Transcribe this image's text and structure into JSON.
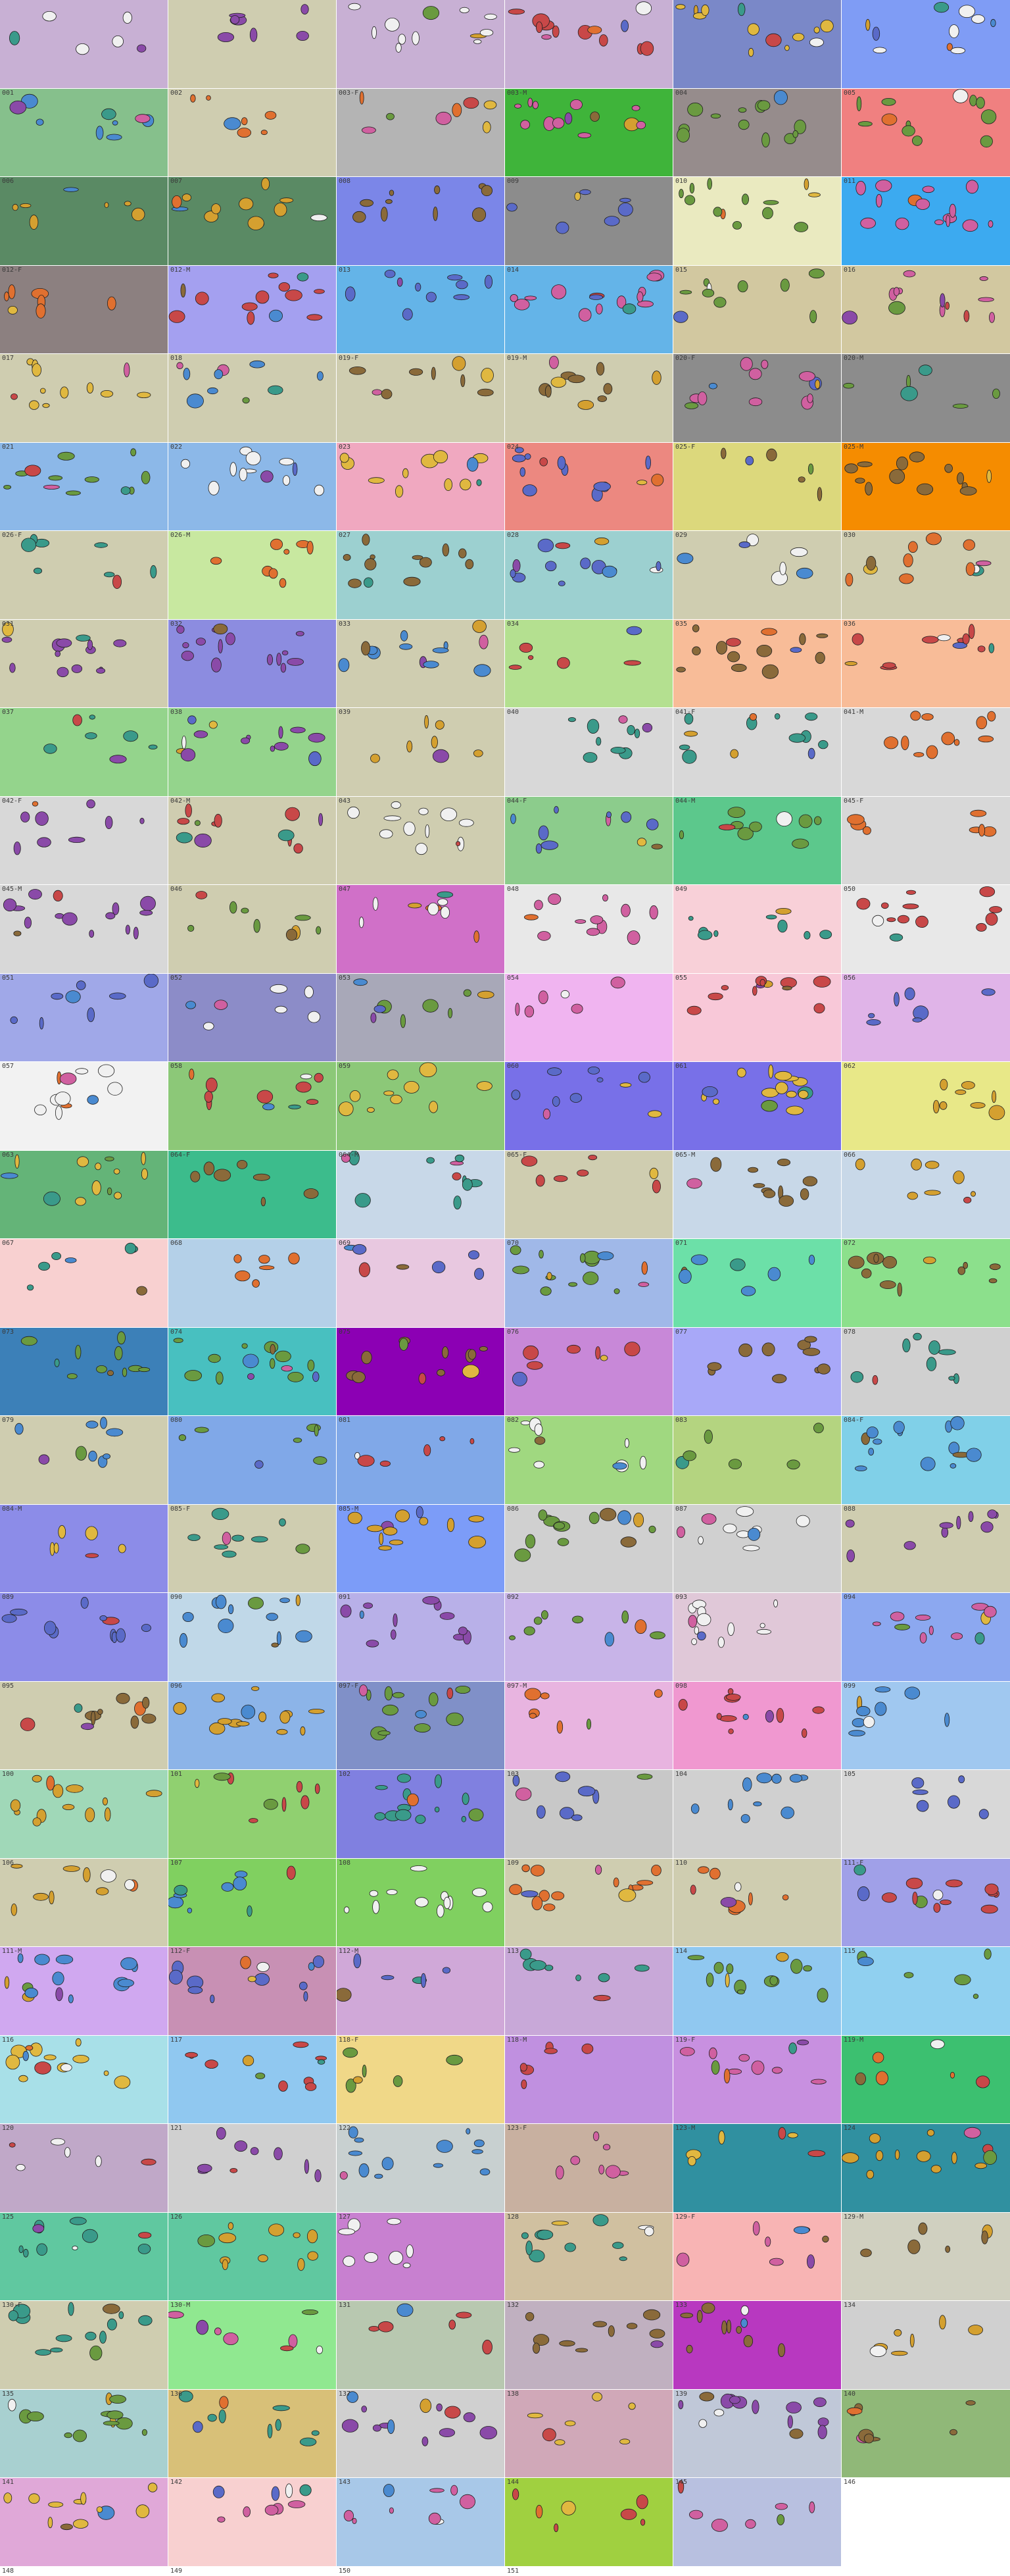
{
  "sheet": {
    "columns": 6,
    "rows": 29,
    "tiles": [
      {
        "label": "",
        "color": "#c8b0d4"
      },
      {
        "label": "",
        "color": "#cfcdb0"
      },
      {
        "label": "",
        "color": "#c8b0d4"
      },
      {
        "label": "",
        "color": "#c8b0d4"
      },
      {
        "label": "",
        "color": "#7a88c8"
      },
      {
        "label": "",
        "color": "#7f9cf5"
      },
      {
        "label": "001",
        "color": "#86c08c"
      },
      {
        "label": "002",
        "color": "#cfcdb0"
      },
      {
        "label": "003-F",
        "color": "#b4b4b4"
      },
      {
        "label": "003-M",
        "color": "#3fb43a"
      },
      {
        "label": "004",
        "color": "#968c8c"
      },
      {
        "label": "005",
        "color": "#f08080"
      },
      {
        "label": "006",
        "color": "#5a8a64"
      },
      {
        "label": "007",
        "color": "#5a8a64"
      },
      {
        "label": "008",
        "color": "#7b86e8"
      },
      {
        "label": "009",
        "color": "#8c8c8c"
      },
      {
        "label": "010",
        "color": "#eaeac0"
      },
      {
        "label": "011",
        "color": "#3caaf0"
      },
      {
        "label": "012-F",
        "color": "#8c8080"
      },
      {
        "label": "012-M",
        "color": "#a4a0f0"
      },
      {
        "label": "013",
        "color": "#64b4e8"
      },
      {
        "label": "014",
        "color": "#64b4e8"
      },
      {
        "label": "015",
        "color": "#d2c8a0"
      },
      {
        "label": "016",
        "color": "#d2c8a0"
      },
      {
        "label": "017",
        "color": "#cfcdb0"
      },
      {
        "label": "018",
        "color": "#cfcdb0"
      },
      {
        "label": "019-F",
        "color": "#cfcdb0"
      },
      {
        "label": "019-M",
        "color": "#cfcdb0"
      },
      {
        "label": "020-F",
        "color": "#8c8c8c"
      },
      {
        "label": "020-M",
        "color": "#8c8c8c"
      },
      {
        "label": "021",
        "color": "#8cb8e8"
      },
      {
        "label": "022",
        "color": "#8cb8e8"
      },
      {
        "label": "023",
        "color": "#f0a8c0"
      },
      {
        "label": "024",
        "color": "#ec8880"
      },
      {
        "label": "025-F",
        "color": "#dcd87c"
      },
      {
        "label": "025-M",
        "color": "#f58c00"
      },
      {
        "label": "026-F",
        "color": "#cfcdb0"
      },
      {
        "label": "026-M",
        "color": "#c8e8a0"
      },
      {
        "label": "027",
        "color": "#9cd0d0"
      },
      {
        "label": "028",
        "color": "#9cd0d0"
      },
      {
        "label": "029",
        "color": "#cfcdb0"
      },
      {
        "label": "030",
        "color": "#cfcdb0"
      },
      {
        "label": "031",
        "color": "#cfcdb0"
      },
      {
        "label": "032",
        "color": "#8c8ce0"
      },
      {
        "label": "033",
        "color": "#cfcdb0"
      },
      {
        "label": "034",
        "color": "#b4e090"
      },
      {
        "label": "035",
        "color": "#f8bc98"
      },
      {
        "label": "036",
        "color": "#f8bc98"
      },
      {
        "label": "037",
        "color": "#94d48c"
      },
      {
        "label": "038",
        "color": "#94d48c"
      },
      {
        "label": "039",
        "color": "#cfcdb0"
      },
      {
        "label": "040",
        "color": "#d8d8d8"
      },
      {
        "label": "041-F",
        "color": "#d8d8d8"
      },
      {
        "label": "041-M",
        "color": "#d8d8d8"
      },
      {
        "label": "042-F",
        "color": "#d8d8d8"
      },
      {
        "label": "042-M",
        "color": "#cfcdb0"
      },
      {
        "label": "043",
        "color": "#cfcdb0"
      },
      {
        "label": "044-F",
        "color": "#8ccc8c"
      },
      {
        "label": "044-M",
        "color": "#5cc88c"
      },
      {
        "label": "045-F",
        "color": "#d8d8d8"
      },
      {
        "label": "045-M",
        "color": "#d8d8d8"
      },
      {
        "label": "046",
        "color": "#cfcdb0"
      },
      {
        "label": "047",
        "color": "#d070c8"
      },
      {
        "label": "048",
        "color": "#e8e8e8"
      },
      {
        "label": "049",
        "color": "#f8d0d8"
      },
      {
        "label": "050",
        "color": "#e8e8e8"
      },
      {
        "label": "051",
        "color": "#a0a8e8"
      },
      {
        "label": "052",
        "color": "#8c8cc8"
      },
      {
        "label": "053",
        "color": "#a8a8b8"
      },
      {
        "label": "054",
        "color": "#f0b4f0"
      },
      {
        "label": "055",
        "color": "#f8c8d8"
      },
      {
        "label": "056",
        "color": "#e0b4e8"
      },
      {
        "label": "057",
        "color": "#f2f2f2"
      },
      {
        "label": "058",
        "color": "#8cc878"
      },
      {
        "label": "059",
        "color": "#8cc878"
      },
      {
        "label": "060",
        "color": "#7870e8"
      },
      {
        "label": "061",
        "color": "#7870e8"
      },
      {
        "label": "062",
        "color": "#e8e888"
      },
      {
        "label": "063",
        "color": "#64b478"
      },
      {
        "label": "064-F",
        "color": "#3cbc8c"
      },
      {
        "label": "064-M",
        "color": "#c8d8e8"
      },
      {
        "label": "065-F",
        "color": "#cfcdb0"
      },
      {
        "label": "065-M",
        "color": "#c8d8e8"
      },
      {
        "label": "066",
        "color": "#c8d8e8"
      },
      {
        "label": "067",
        "color": "#f8d0d0"
      },
      {
        "label": "068",
        "color": "#b4d0e8"
      },
      {
        "label": "069",
        "color": "#e8c8e0"
      },
      {
        "label": "070",
        "color": "#a0b8e8"
      },
      {
        "label": "071",
        "color": "#6ce0a8"
      },
      {
        "label": "072",
        "color": "#8ce08c"
      },
      {
        "label": "073",
        "color": "#3c80b8"
      },
      {
        "label": "074",
        "color": "#48c0c0"
      },
      {
        "label": "075",
        "color": "#8c00b4"
      },
      {
        "label": "076",
        "color": "#c888d8"
      },
      {
        "label": "077",
        "color": "#a8a8f8"
      },
      {
        "label": "078",
        "color": "#d0d0d0"
      },
      {
        "label": "079",
        "color": "#cfcdb0"
      },
      {
        "label": "080",
        "color": "#80a8e8"
      },
      {
        "label": "081",
        "color": "#80a8e8"
      },
      {
        "label": "082",
        "color": "#a0d880"
      },
      {
        "label": "083",
        "color": "#b4d480"
      },
      {
        "label": "084-F",
        "color": "#80d0e8"
      },
      {
        "label": "084-M",
        "color": "#8c8ce8"
      },
      {
        "label": "085-F",
        "color": "#cfcdb0"
      },
      {
        "label": "085-M",
        "color": "#7c9cf8"
      },
      {
        "label": "086",
        "color": "#d0d0d0"
      },
      {
        "label": "087",
        "color": "#d0d0d0"
      },
      {
        "label": "088",
        "color": "#cfcdb0"
      },
      {
        "label": "089",
        "color": "#8c8ce8"
      },
      {
        "label": "090",
        "color": "#c0d8e8"
      },
      {
        "label": "091",
        "color": "#b8b0e8"
      },
      {
        "label": "092",
        "color": "#c8b4e8"
      },
      {
        "label": "093",
        "color": "#e0c8d8"
      },
      {
        "label": "094",
        "color": "#8ca8f0"
      },
      {
        "label": "095",
        "color": "#cfcdb0"
      },
      {
        "label": "096",
        "color": "#8cb4e8"
      },
      {
        "label": "097-F",
        "color": "#8090c8"
      },
      {
        "label": "097-M",
        "color": "#e8b4e0"
      },
      {
        "label": "098",
        "color": "#f098d0"
      },
      {
        "label": "099",
        "color": "#a0c8f0"
      },
      {
        "label": "100",
        "color": "#a0d8b8"
      },
      {
        "label": "101",
        "color": "#90d070"
      },
      {
        "label": "102",
        "color": "#8080e0"
      },
      {
        "label": "103",
        "color": "#c8c8c8"
      },
      {
        "label": "104",
        "color": "#d0d0d0"
      },
      {
        "label": "105",
        "color": "#d8d8d8"
      },
      {
        "label": "106",
        "color": "#cfcdb0"
      },
      {
        "label": "107",
        "color": "#80d060"
      },
      {
        "label": "108",
        "color": "#80d060"
      },
      {
        "label": "109",
        "color": "#cfcdb0"
      },
      {
        "label": "110",
        "color": "#cfcdb0"
      },
      {
        "label": "111-F",
        "color": "#a0a0e8"
      },
      {
        "label": "111-M",
        "color": "#d0a8f0"
      },
      {
        "label": "112-F",
        "color": "#c890b4"
      },
      {
        "label": "112-M",
        "color": "#d0a8d8"
      },
      {
        "label": "113",
        "color": "#c8a8d8"
      },
      {
        "label": "114",
        "color": "#90c8f0"
      },
      {
        "label": "115",
        "color": "#90d0f0"
      },
      {
        "label": "116",
        "color": "#a8e0e8"
      },
      {
        "label": "117",
        "color": "#90c8f0"
      },
      {
        "label": "118-F",
        "color": "#f0d888"
      },
      {
        "label": "118-M",
        "color": "#c090e0"
      },
      {
        "label": "119-F",
        "color": "#c890e0"
      },
      {
        "label": "119-M",
        "color": "#3cc070"
      },
      {
        "label": "120",
        "color": "#c0a8c8"
      },
      {
        "label": "121",
        "color": "#d0d0d0"
      },
      {
        "label": "122",
        "color": "#c8d0d0"
      },
      {
        "label": "123-F",
        "color": "#c8b0a0"
      },
      {
        "label": "123-M",
        "color": "#3090a0"
      },
      {
        "label": "124",
        "color": "#3090a0"
      },
      {
        "label": "125",
        "color": "#60c8a0"
      },
      {
        "label": "126",
        "color": "#60c8a0"
      },
      {
        "label": "127",
        "color": "#c880d0"
      },
      {
        "label": "128",
        "color": "#d0c0a0"
      },
      {
        "label": "129-F",
        "color": "#f8b4b4"
      },
      {
        "label": "129-M",
        "color": "#d0d0c0"
      },
      {
        "label": "130-F",
        "color": "#cfcdb0"
      },
      {
        "label": "130-M",
        "color": "#90e890"
      },
      {
        "label": "131",
        "color": "#b8c8b0"
      },
      {
        "label": "132",
        "color": "#c0b0c0"
      },
      {
        "label": "133",
        "color": "#b838c0"
      },
      {
        "label": "134",
        "color": "#d0d0d0"
      },
      {
        "label": "135",
        "color": "#a8d0d0"
      },
      {
        "label": "136",
        "color": "#d8c078"
      },
      {
        "label": "137",
        "color": "#d0d0d0"
      },
      {
        "label": "138",
        "color": "#d0a8b8"
      },
      {
        "label": "139",
        "color": "#c0c8d8"
      },
      {
        "label": "140",
        "color": "#90b878"
      },
      {
        "label": "141",
        "color": "#e0a8d8"
      },
      {
        "label": "142",
        "color": "#f8d0d0"
      },
      {
        "label": "143",
        "color": "#a8c8e8"
      },
      {
        "label": "144",
        "color": "#a0d040"
      },
      {
        "label": "145",
        "color": "#b8c0e0"
      },
      {
        "label": "146",
        "color": "#ffffff"
      }
    ],
    "footer_labels": [
      "148",
      "149",
      "150",
      "151"
    ]
  }
}
